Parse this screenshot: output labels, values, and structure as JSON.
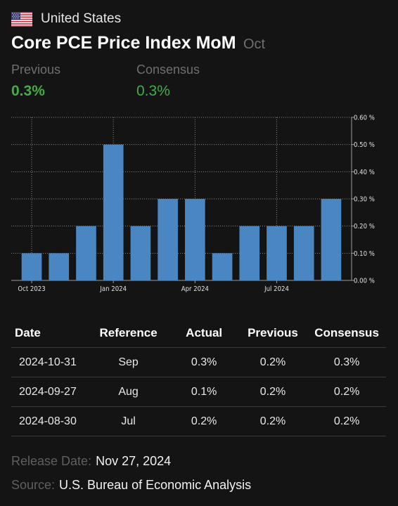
{
  "header": {
    "country": "United States",
    "title": "Core PCE Price Index MoM",
    "period": "Oct"
  },
  "summary": {
    "previous_label": "Previous",
    "previous_value": "0.3%",
    "consensus_label": "Consensus",
    "consensus_value": "0.3%"
  },
  "colors": {
    "bar": "#4a87c2",
    "positive": "#3faf45",
    "background": "#141414",
    "muted": "#6f6f6f"
  },
  "chart_data": {
    "type": "bar",
    "categories": [
      "Oct 2023",
      "Nov 2023",
      "Dec 2023",
      "Jan 2024",
      "Feb 2024",
      "Mar 2024",
      "Apr 2024",
      "May 2024",
      "Jun 2024",
      "Jul 2024",
      "Aug 2024",
      "Sep 2024"
    ],
    "values": [
      0.1,
      0.1,
      0.2,
      0.5,
      0.2,
      0.3,
      0.3,
      0.1,
      0.2,
      0.2,
      0.2,
      0.3
    ],
    "x_tick_labels": [
      "Oct 2023",
      "Jan 2024",
      "Apr 2024",
      "Jul 2024"
    ],
    "y_tick_labels": [
      "0.00 %",
      "0.10 %",
      "0.20 %",
      "0.30 %",
      "0.40 %",
      "0.50 %",
      "0.60 %"
    ],
    "ylim": [
      0,
      0.6
    ],
    "grid": true,
    "y_axis_position": "right"
  },
  "table": {
    "headers": [
      "Date",
      "Reference",
      "Actual",
      "Previous",
      "Consensus"
    ],
    "rows": [
      [
        "2024-10-31",
        "Sep",
        "0.3%",
        "0.2%",
        "0.3%"
      ],
      [
        "2024-09-27",
        "Aug",
        "0.1%",
        "0.2%",
        "0.2%"
      ],
      [
        "2024-08-30",
        "Jul",
        "0.2%",
        "0.2%",
        "0.2%"
      ]
    ]
  },
  "footer": {
    "release_label": "Release Date:",
    "release_value": "Nov 27, 2024",
    "source_label": "Source:",
    "source_value": "U.S. Bureau of Economic Analysis"
  }
}
